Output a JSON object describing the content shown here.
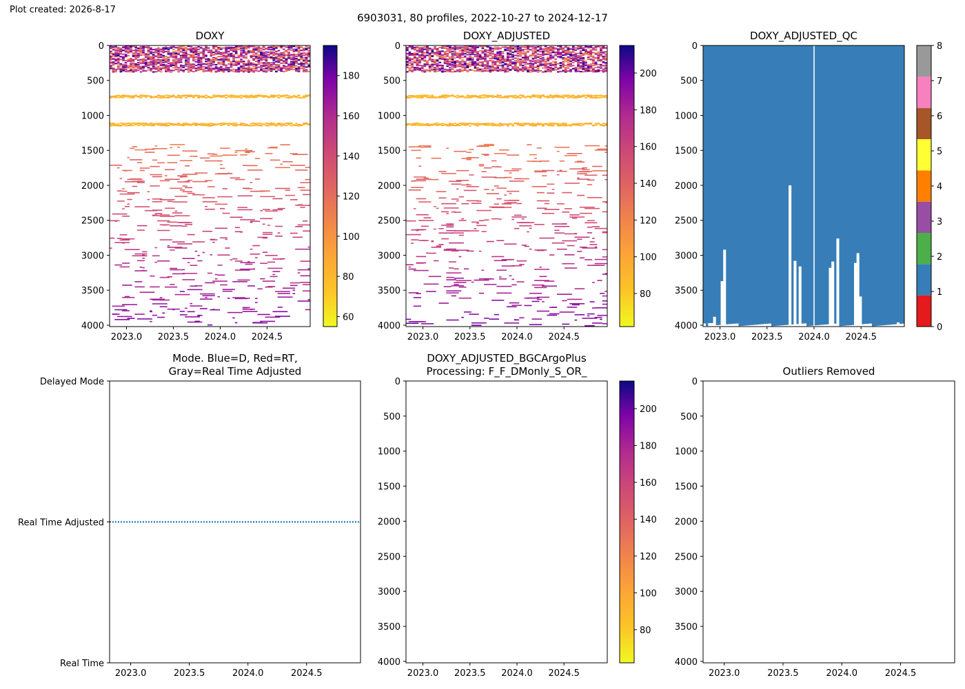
{
  "header": {
    "created_label": "Plot created: 2026-8-17",
    "title": "6903031, 80 profiles, 2022-10-27 to 2024-12-17"
  },
  "colors": {
    "qc_scale": [
      "#e41a1c",
      "#377eb8",
      "#4daf4a",
      "#984ea3",
      "#ff7f00",
      "#ffff33",
      "#a65628",
      "#f781bf",
      "#999999"
    ],
    "mode_line": "#1f77b4"
  },
  "chart_data": [
    {
      "id": "doxy",
      "type": "heatmap",
      "title": "DOXY",
      "colormap": "plasma_r",
      "x_ticks": [
        "2023.0",
        "2023.5",
        "2024.0",
        "2024.5"
      ],
      "x_tick_values": [
        2023.0,
        2023.5,
        2024.0,
        2024.5
      ],
      "xlim": [
        2022.82,
        2024.96
      ],
      "y_ticks": [
        "0",
        "500",
        "1000",
        "1500",
        "2000",
        "2500",
        "3000",
        "3500",
        "4000"
      ],
      "ylim": [
        4020,
        0
      ],
      "y_inverted": true,
      "colorbar": {
        "ticks": [
          "60",
          "80",
          "100",
          "120",
          "140",
          "160",
          "180"
        ],
        "range": [
          55,
          195
        ]
      }
    },
    {
      "id": "doxy_adj",
      "type": "heatmap",
      "title": "DOXY_ADJUSTED",
      "colormap": "plasma_r",
      "x_ticks": [
        "2023.0",
        "2023.5",
        "2024.0",
        "2024.5"
      ],
      "x_tick_values": [
        2023.0,
        2023.5,
        2024.0,
        2024.5
      ],
      "xlim": [
        2022.82,
        2024.96
      ],
      "y_ticks": [
        "0",
        "500",
        "1000",
        "1500",
        "2000",
        "2500",
        "3000",
        "3500",
        "4000"
      ],
      "ylim": [
        4020,
        0
      ],
      "y_inverted": true,
      "colorbar": {
        "ticks": [
          "80",
          "100",
          "120",
          "140",
          "160",
          "180",
          "200"
        ],
        "range": [
          62,
          215
        ]
      }
    },
    {
      "id": "qc",
      "type": "heatmap",
      "title": "DOXY_ADJUSTED_QC",
      "x_ticks": [
        "2023.0",
        "2023.5",
        "2024.0",
        "2024.5"
      ],
      "x_tick_values": [
        2023.0,
        2023.5,
        2024.0,
        2024.5
      ],
      "xlim": [
        2022.82,
        2024.96
      ],
      "y_ticks": [
        "0",
        "500",
        "1000",
        "1500",
        "2000",
        "2500",
        "3000",
        "3500",
        "4000"
      ],
      "ylim": [
        4020,
        0
      ],
      "y_inverted": true,
      "dominant_flag": 1,
      "gap_x": 2024.0,
      "profile_bottoms": [
        {
          "x": 2022.9,
          "depth": 3970
        },
        {
          "x": 2022.95,
          "depth": 3880
        },
        {
          "x": 2023.02,
          "depth": 3370
        },
        {
          "x": 2023.06,
          "depth": 2920
        },
        {
          "x": 2023.75,
          "depth": 2000
        },
        {
          "x": 2023.8,
          "depth": 3080
        },
        {
          "x": 2023.85,
          "depth": 3160
        },
        {
          "x": 2024.18,
          "depth": 3180
        },
        {
          "x": 2024.21,
          "depth": 3090
        },
        {
          "x": 2024.25,
          "depth": 2760
        },
        {
          "x": 2024.44,
          "depth": 3110
        },
        {
          "x": 2024.47,
          "depth": 2970
        },
        {
          "x": 2024.5,
          "depth": 3590
        },
        {
          "x": 2024.9,
          "depth": 3960
        }
      ],
      "colorbar": {
        "ticks": [
          "0",
          "1",
          "2",
          "3",
          "4",
          "5",
          "6",
          "7",
          "8"
        ],
        "range": [
          0,
          8
        ]
      }
    },
    {
      "id": "mode",
      "type": "line",
      "title": "Mode. Blue=D, Red=RT,\nGray=Real Time Adjusted",
      "title_lines": [
        "Mode. Blue=D, Red=RT,",
        "Gray=Real Time Adjusted"
      ],
      "x_ticks": [
        "2023.0",
        "2023.5",
        "2024.0",
        "2024.5"
      ],
      "x_tick_values": [
        2023.0,
        2023.5,
        2024.0,
        2024.5
      ],
      "xlim": [
        2022.82,
        2024.96
      ],
      "y_ticks": [
        "Delayed Mode",
        "Real Time Adjusted",
        "Real Time"
      ],
      "y_tick_values": [
        1,
        0.5,
        0
      ],
      "ylim": [
        0,
        1
      ],
      "series": [
        {
          "x": [
            2022.82,
            2024.96
          ],
          "y": [
            0.5,
            0.5
          ],
          "style": "dotted"
        }
      ]
    },
    {
      "id": "bgc",
      "type": "heatmap",
      "title_lines": [
        "DOXY_ADJUSTED_BGCArgoPlus",
        "Processing: F_F_DMonly_S_OR_"
      ],
      "x_ticks": [
        "2023.0",
        "2023.5",
        "2024.0",
        "2024.5"
      ],
      "x_tick_values": [
        2023.0,
        2023.5,
        2024.0,
        2024.5
      ],
      "xlim": [
        2022.82,
        2024.96
      ],
      "y_ticks": [
        "0",
        "500",
        "1000",
        "1500",
        "2000",
        "2500",
        "3000",
        "3500",
        "4000"
      ],
      "ylim": [
        4020,
        0
      ],
      "y_inverted": true,
      "values": [],
      "colorbar": {
        "ticks": [
          "80",
          "100",
          "120",
          "140",
          "160",
          "180",
          "200"
        ],
        "range": [
          62,
          215
        ]
      }
    },
    {
      "id": "outliers",
      "type": "scatter",
      "title": "Outliers Removed",
      "x_ticks": [
        "2023.0",
        "2023.5",
        "2024.0",
        "2024.5"
      ],
      "x_tick_values": [
        2023.0,
        2023.5,
        2024.0,
        2024.5
      ],
      "xlim": [
        2022.82,
        2024.96
      ],
      "y_ticks": [
        "0",
        "500",
        "1000",
        "1500",
        "2000",
        "2500",
        "3000",
        "3500",
        "4000"
      ],
      "ylim": [
        4020,
        0
      ],
      "y_inverted": true,
      "values": []
    }
  ]
}
